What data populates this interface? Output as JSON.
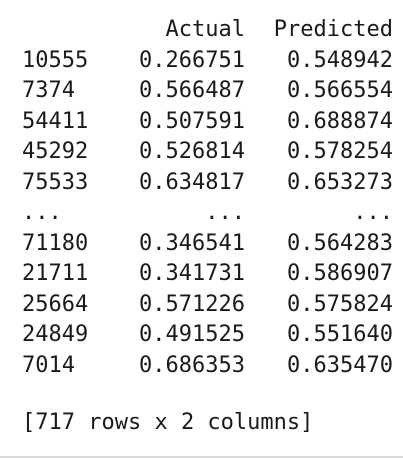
{
  "dataframe": {
    "columns": [
      "Actual",
      "Predicted"
    ],
    "rows": [
      {
        "index": "10555",
        "actual": "0.266751",
        "predicted": "0.548942"
      },
      {
        "index": "7374",
        "actual": "0.566487",
        "predicted": "0.566554"
      },
      {
        "index": "54411",
        "actual": "0.507591",
        "predicted": "0.688874"
      },
      {
        "index": "45292",
        "actual": "0.526814",
        "predicted": "0.578254"
      },
      {
        "index": "75533",
        "actual": "0.634817",
        "predicted": "0.653273"
      },
      {
        "index": "...",
        "actual": "...",
        "predicted": "..."
      },
      {
        "index": "71180",
        "actual": "0.346541",
        "predicted": "0.564283"
      },
      {
        "index": "21711",
        "actual": "0.341731",
        "predicted": "0.586907"
      },
      {
        "index": "25664",
        "actual": "0.571226",
        "predicted": "0.575824"
      },
      {
        "index": "24849",
        "actual": "0.491525",
        "predicted": "0.551640"
      },
      {
        "index": "7014",
        "actual": "0.686353",
        "predicted": "0.635470"
      }
    ],
    "shape_text": "[717 rows x 2 columns]"
  }
}
